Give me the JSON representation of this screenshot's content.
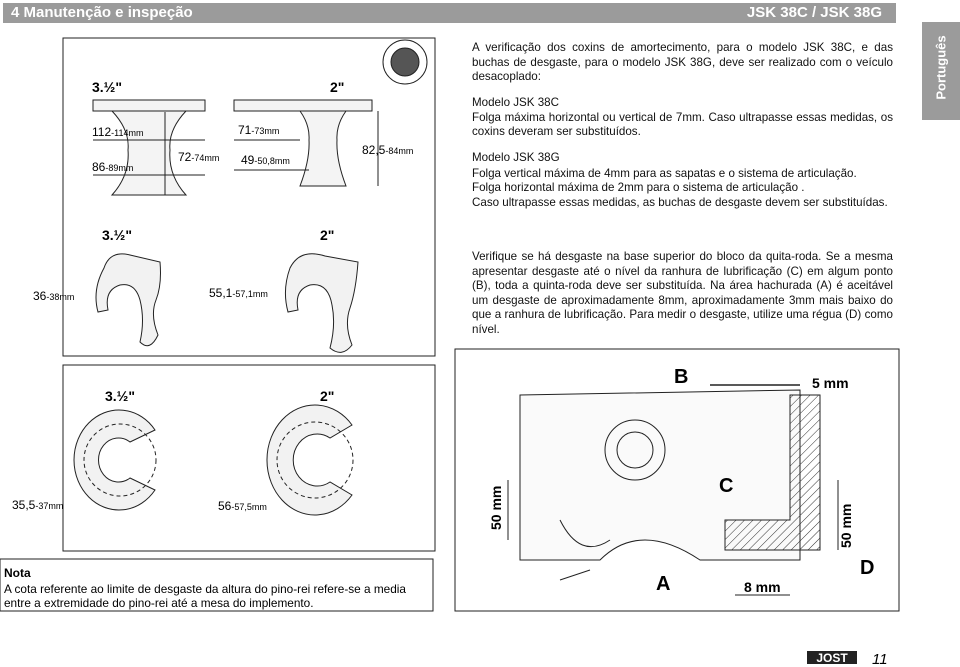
{
  "header": {
    "section": "4  Manutenção e inspeção",
    "models": "JSK 38C / JSK 38G"
  },
  "side_tab": "Português",
  "text": {
    "intro": "A verificação dos coxins de amortecimento, para o modelo JSK 38C, e das buchas de desgaste, para o modelo JSK 38G, deve ser realizado com o veículo desacoplado:",
    "model_38c": {
      "title": "Modelo JSK 38C",
      "body": "Folga máxima horizontal ou vertical de 7mm. Caso ultrapasse essas medidas, os coxins deveram ser substituídos."
    },
    "model_38g": {
      "title": "Modelo JSK 38G",
      "lines": [
        "Folga vertical máxima de 4mm para as sapatas e o sistema de articulação.",
        "Folga horizontal máxima de 2mm para o sistema de articulação .",
        "Caso ultrapasse essas medidas, as buchas de desgaste devem ser substituídas."
      ]
    },
    "wear": "Verifique se há desgaste na base superior do bloco da quita-roda. Se a mesma apresentar desgaste até o nível da ranhura de lubrificação (C) em algum ponto (B), toda a quinta-roda deve ser substituída. Na área hachurada (A) é aceitável um desgaste de aproximadamente 8mm, aproximadamente 3mm mais baixo do que a ranhura de lubrificação. Para medir o desgaste, utilize uma régua (D) como nível."
  },
  "figures": {
    "pads": {
      "sizes": [
        "3.½\"",
        "2\""
      ],
      "dims": [
        {
          "main": "112",
          "sub": "-114mm"
        },
        {
          "main": "86",
          "sub": "-89mm"
        },
        {
          "main": "72",
          "sub": "-74mm"
        },
        {
          "main": "71",
          "sub": "-73mm"
        },
        {
          "main": "49",
          "sub": "-50,8mm"
        },
        {
          "main": "82,5",
          "sub": "-84mm"
        }
      ]
    },
    "bushings": {
      "sizes": [
        "3.½\"",
        "2\""
      ],
      "dims": [
        {
          "main": "36",
          "sub": "-38mm"
        },
        {
          "main": "55,1",
          "sub": "-57,1mm"
        }
      ]
    },
    "rings": {
      "sizes": [
        "3.½\"",
        "2\""
      ],
      "dims": [
        {
          "main": "35,5",
          "sub": "-37mm"
        },
        {
          "main": "56",
          "sub": "-57,5mm"
        }
      ]
    },
    "cross_section": {
      "b": "B",
      "gap_top": "5 mm",
      "c": "C",
      "height_left": "50 mm",
      "height_right": "50 mm",
      "a": "A",
      "gap_bottom": "8 mm",
      "d": "D"
    }
  },
  "note": {
    "title": "Nota",
    "body": "A cota referente ao limite de desgaste da altura do pino-rei refere-se a media entre a extremidade do pino-rei até a mesa do implemento."
  },
  "footer": {
    "logo": "JOST",
    "page": "11"
  }
}
